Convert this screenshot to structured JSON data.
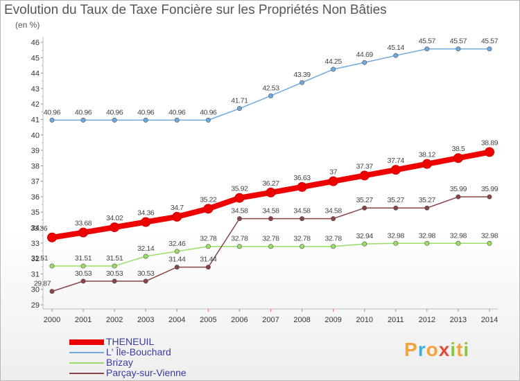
{
  "title": "Evolution du Taux de Taxe Foncière sur les Propriétés Non Bâties",
  "unit": "(en %)",
  "brand": {
    "letters": [
      "P",
      "r",
      "o",
      "x",
      "i",
      "t",
      "i"
    ],
    "colors": [
      "#f2a33a",
      "#3ab0e0",
      "#f2a33a",
      "#e84a3a",
      "#8cc63f",
      "#f2a33a",
      "#8cc63f"
    ]
  },
  "chart_data": {
    "type": "line",
    "x": [
      "2000",
      "2001",
      "2002",
      "2003",
      "2004",
      "2005",
      "2006",
      "2007",
      "2008",
      "2009",
      "2010",
      "2011",
      "2012",
      "2013",
      "2014"
    ],
    "ylim": [
      29,
      46
    ],
    "yticks": [
      "29",
      "30",
      "31",
      "32",
      "33",
      "34",
      "35",
      "36",
      "37",
      "38",
      "39",
      "40",
      "41",
      "42",
      "43",
      "44",
      "45",
      "46"
    ],
    "series": [
      {
        "name": "THENEUIL",
        "color": "#ee0000",
        "values": [
          33.36,
          33.68,
          34.02,
          34.36,
          34.7,
          35.22,
          35.92,
          36.27,
          36.63,
          37,
          37.37,
          37.74,
          38.12,
          38.5,
          38.89
        ],
        "labels": [
          "33.36",
          "33.68",
          "34.02",
          "34.36",
          "34.7",
          "35.22",
          "35.92",
          "36.27",
          "36.63",
          "37",
          "37.37",
          "37.74",
          "38.12",
          "38.5",
          "38.89"
        ]
      },
      {
        "name": "L' Île-Bouchard",
        "color": "#6fa8dc",
        "values": [
          40.96,
          40.96,
          40.96,
          40.96,
          40.96,
          40.96,
          41.71,
          42.53,
          43.39,
          44.25,
          44.69,
          45.14,
          45.57,
          45.57,
          45.57
        ],
        "labels": [
          "40.96",
          "40.96",
          "40.96",
          "40.96",
          "40.96",
          "40.96",
          "41.71",
          "42.53",
          "43.39",
          "44.25",
          "44.69",
          "45.14",
          "45.57",
          "45.57",
          "45.57"
        ]
      },
      {
        "name": "Brizay",
        "color": "#99dd66",
        "values": [
          31.51,
          31.51,
          31.51,
          32.14,
          32.46,
          32.78,
          32.78,
          32.78,
          32.78,
          32.78,
          32.94,
          32.98,
          32.98,
          32.98,
          32.98
        ],
        "labels": [
          "31.51",
          "31.51",
          "31.51",
          "32.14",
          "32.46",
          "32.78",
          "32.78",
          "32.78",
          "32.78",
          "32.78",
          "32.94",
          "32.98",
          "32.98",
          "32.98",
          "32.98"
        ]
      },
      {
        "name": "Parçay-sur-Vienne",
        "color": "#884444",
        "values": [
          29.87,
          30.53,
          30.53,
          30.53,
          31.44,
          31.44,
          34.58,
          34.58,
          34.58,
          34.58,
          35.27,
          35.27,
          35.27,
          35.99,
          35.99
        ],
        "labels": [
          "29.87",
          "30.53",
          "30.53",
          "30.53",
          "31.44",
          "31.44",
          "34.58",
          "34.58",
          "34.58",
          "34.58",
          "35.27",
          "35.27",
          "35.27",
          "35.99",
          "35.99"
        ]
      }
    ],
    "legend_position": "bottom-left",
    "grid": false
  }
}
